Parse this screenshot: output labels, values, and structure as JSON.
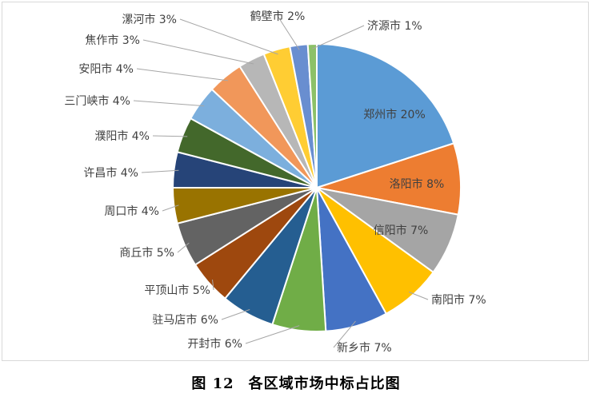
{
  "caption": {
    "number": "图 12",
    "title": "各区域市场中标占比图"
  },
  "chart_data": {
    "type": "pie",
    "title": "",
    "start_angle_deg": 0,
    "direction": "clockwise",
    "legend": "none",
    "slices": [
      {
        "name": "郑州市",
        "value": 20,
        "label": "郑州市 20%",
        "color": "#5b9bd5"
      },
      {
        "name": "洛阳市",
        "value": 8,
        "label": "洛阳市 8%",
        "color": "#ed7d31"
      },
      {
        "name": "信阳市",
        "value": 7,
        "label": "信阳市 7%",
        "color": "#a5a5a5"
      },
      {
        "name": "南阳市",
        "value": 7,
        "label": "南阳市 7%",
        "color": "#ffc000"
      },
      {
        "name": "新乡市",
        "value": 7,
        "label": "新乡市 7%",
        "color": "#4472c4"
      },
      {
        "name": "开封市",
        "value": 6,
        "label": "开封市 6%",
        "color": "#70ad47"
      },
      {
        "name": "驻马店市",
        "value": 6,
        "label": "驻马店市 6%",
        "color": "#255e91"
      },
      {
        "name": "平顶山市",
        "value": 5,
        "label": "平顶山市 5%",
        "color": "#9e480e"
      },
      {
        "name": "商丘市",
        "value": 5,
        "label": "商丘市 5%",
        "color": "#636363"
      },
      {
        "name": "周口市",
        "value": 4,
        "label": "周口市 4%",
        "color": "#997300"
      },
      {
        "name": "许昌市",
        "value": 4,
        "label": "许昌市 4%",
        "color": "#264478"
      },
      {
        "name": "濮阳市",
        "value": 4,
        "label": "濮阳市 4%",
        "color": "#43682b"
      },
      {
        "name": "三门峡市",
        "value": 4,
        "label": "三门峡市 4%",
        "color": "#7cafdd"
      },
      {
        "name": "安阳市",
        "value": 4,
        "label": "安阳市 4%",
        "color": "#f1975a"
      },
      {
        "name": "焦作市",
        "value": 3,
        "label": "焦作市 3%",
        "color": "#b7b7b7"
      },
      {
        "name": "漯河市",
        "value": 3,
        "label": "漯河市 3%",
        "color": "#ffcd33"
      },
      {
        "name": "鹤壁市",
        "value": 2,
        "label": "鹤壁市 2%",
        "color": "#698ed0"
      },
      {
        "name": "济源市",
        "value": 1,
        "label": "济源市 1%",
        "color": "#8cc168"
      }
    ]
  }
}
